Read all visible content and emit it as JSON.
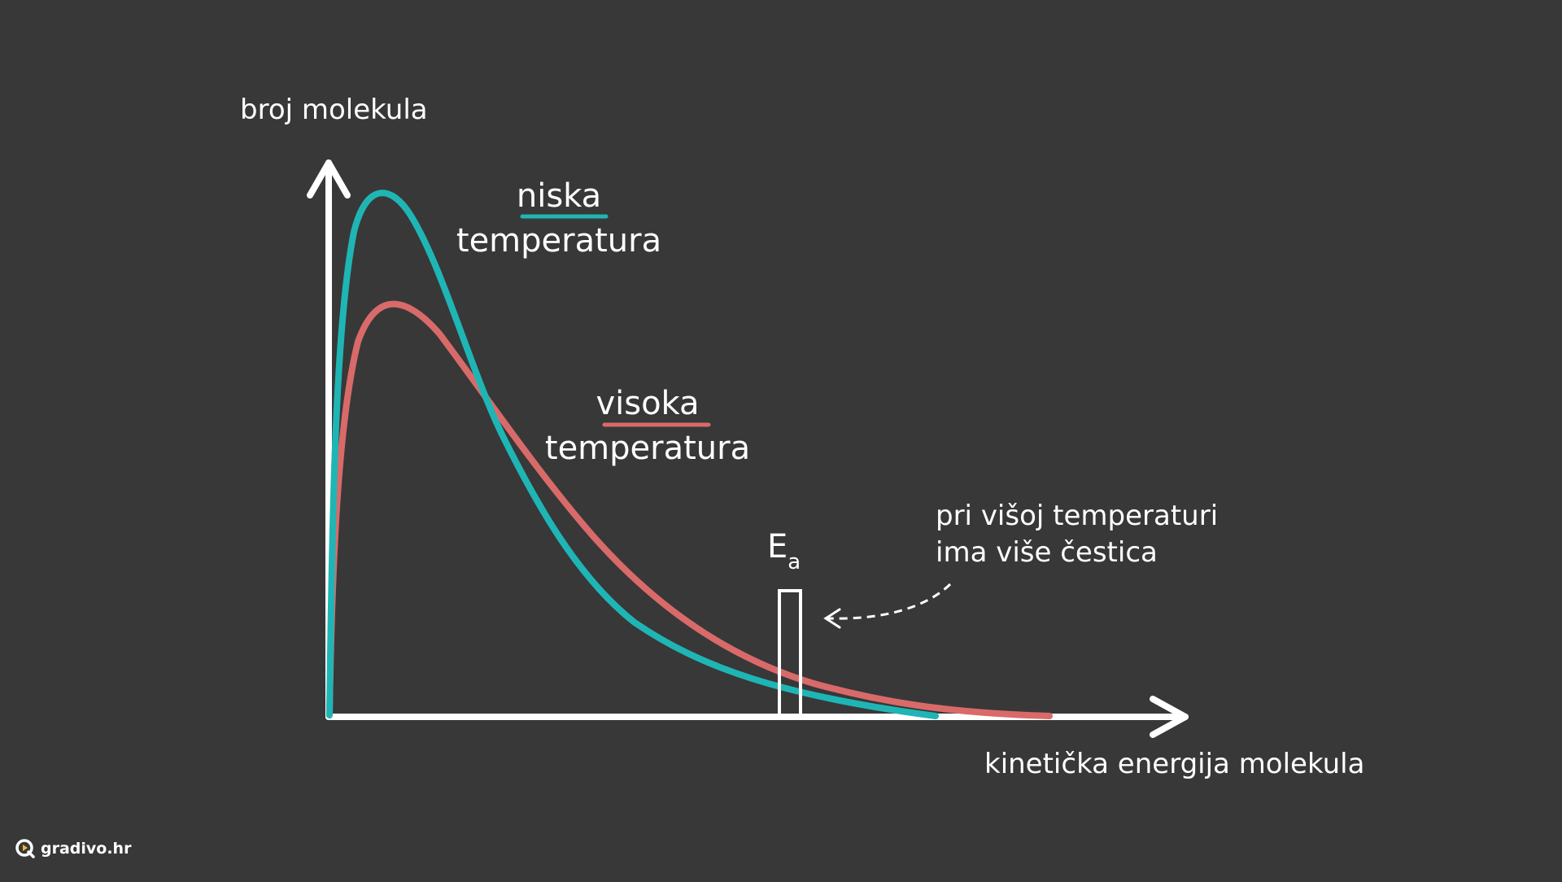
{
  "y_axis_label": "broj molekula",
  "x_axis_label": "kinetička energija molekula",
  "low_temp": {
    "line1": "niska",
    "line2": "temperatura"
  },
  "high_temp": {
    "line1": "visoka",
    "line2": "temperatura"
  },
  "ea": {
    "main": "E",
    "sub": "a"
  },
  "annotation": {
    "line1": "pri višoj temperaturi",
    "line2": "ima više čestica"
  },
  "brand": "gradivo.hr",
  "colors": {
    "background": "#383838",
    "low_temp": "#1fb5b5",
    "high_temp": "#d96a6a",
    "axis": "#ffffff",
    "brand_accent": "#f2b632"
  }
}
